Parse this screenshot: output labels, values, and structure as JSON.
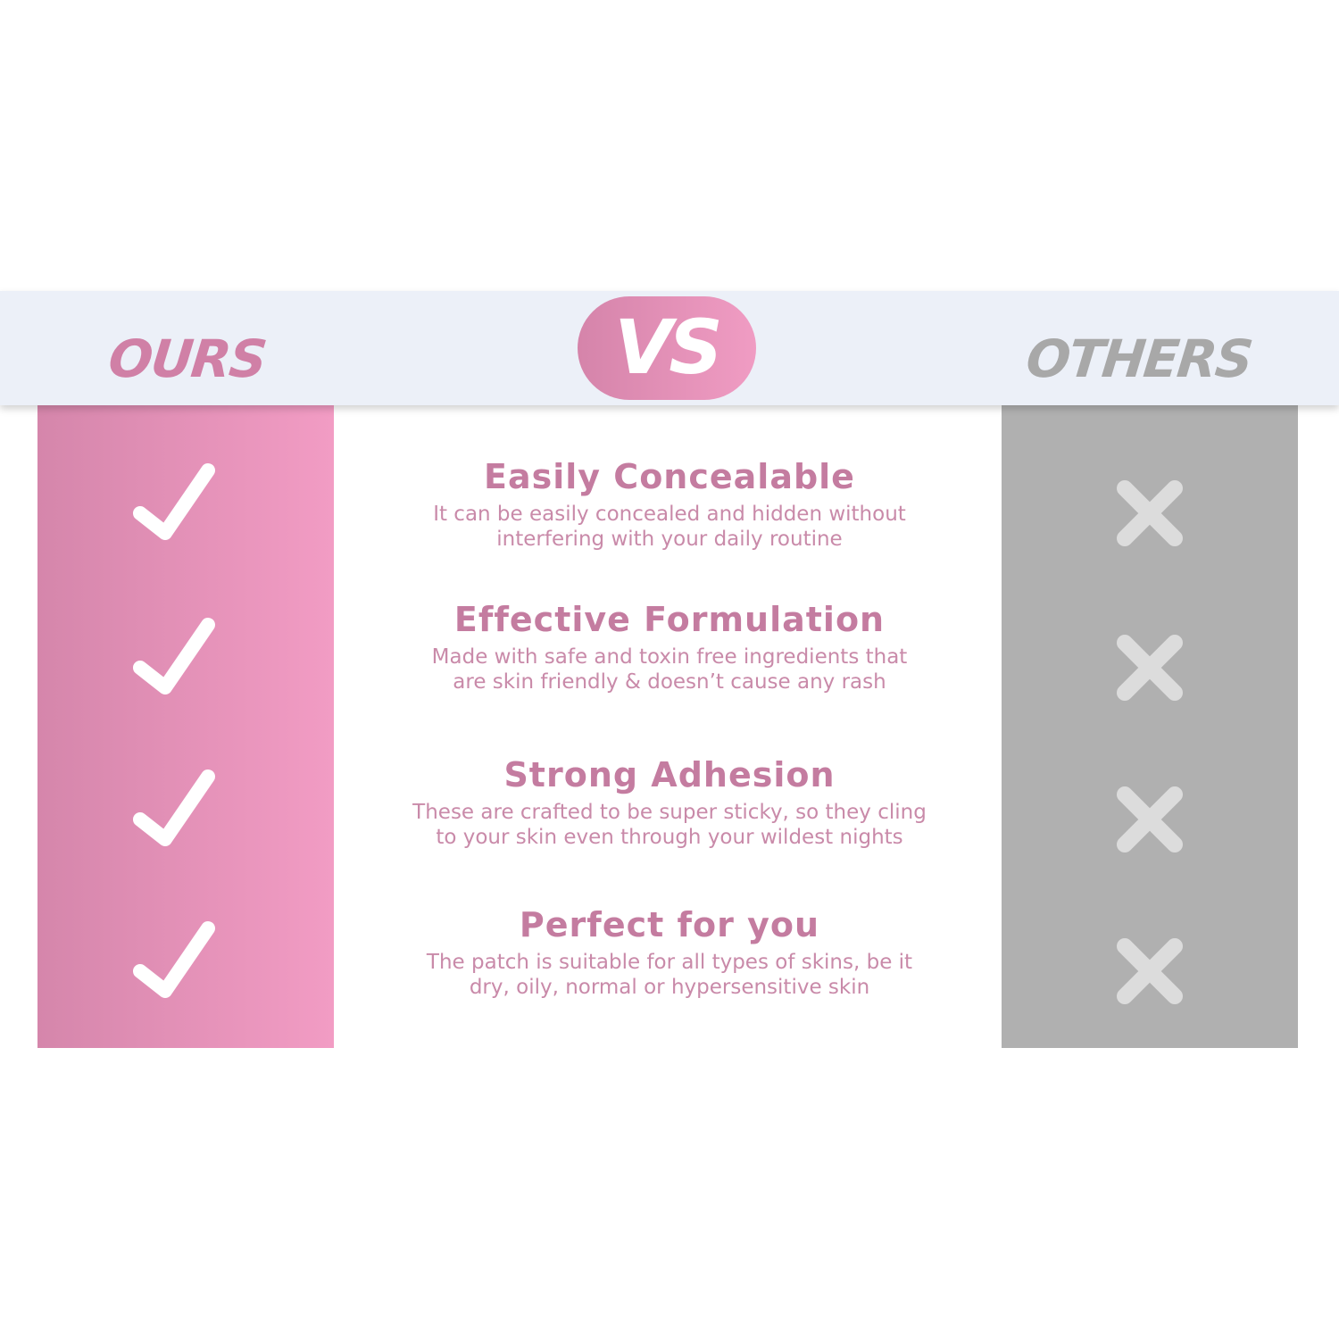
{
  "header": {
    "ours": "OURS",
    "vs": "VS",
    "others": "OTHERS"
  },
  "colors": {
    "pink": "#d584aa",
    "pink_light": "#f29cc4",
    "gray": "#b0b0b0",
    "band": "#ecf0f8"
  },
  "features": [
    {
      "title": "Easily Concealable",
      "line1": "It can be easily concealed and hidden without",
      "line2": "interfering with your daily routine",
      "ours": "check-icon",
      "others": "x-icon"
    },
    {
      "title": "Effective Formulation",
      "line1": "Made with safe and toxin free ingredients that",
      "line2": "are skin friendly & doesn’t cause any rash",
      "ours": "check-icon",
      "others": "x-icon"
    },
    {
      "title": "Strong Adhesion",
      "line1": "These are crafted to be super sticky, so they cling",
      "line2": "to your skin even through your wildest nights",
      "ours": "check-icon",
      "others": "x-icon"
    },
    {
      "title": "Perfect for you",
      "line1": "The patch is suitable for all types of skins, be it",
      "line2": "dry, oily, normal or hypersensitive skin",
      "ours": "check-icon",
      "others": "x-icon"
    }
  ]
}
